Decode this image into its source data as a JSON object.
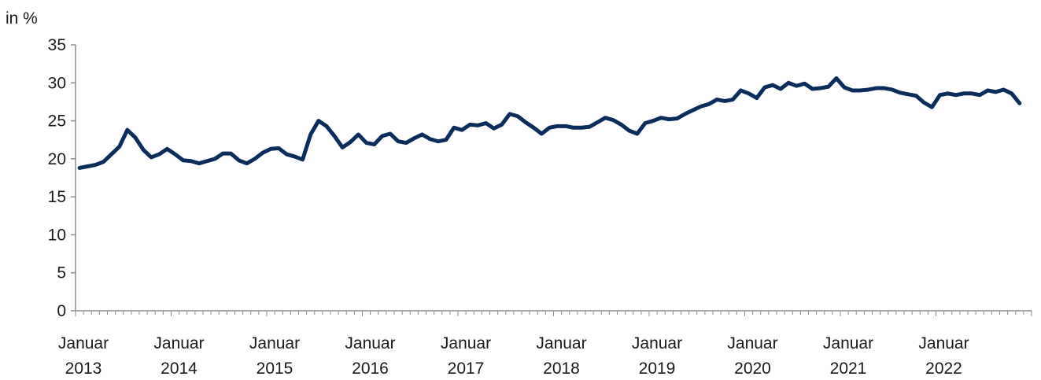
{
  "chart_data": {
    "type": "line",
    "ylabel": "in %",
    "ylim": [
      0,
      35
    ],
    "yticks": [
      0,
      5,
      10,
      15,
      20,
      25,
      30,
      35
    ],
    "grid": false,
    "line_color": "#0b2d5c",
    "axis_color": "#8c8c8c",
    "x_start": "2013-01",
    "x_end": "2022-12",
    "xtick_labels": [
      {
        "date": "2013-01",
        "line1": "Januar",
        "line2": "2013"
      },
      {
        "date": "2014-01",
        "line1": "Januar",
        "line2": "2014"
      },
      {
        "date": "2015-01",
        "line1": "Januar",
        "line2": "2015"
      },
      {
        "date": "2016-01",
        "line1": "Januar",
        "line2": "2016"
      },
      {
        "date": "2017-01",
        "line1": "Januar",
        "line2": "2017"
      },
      {
        "date": "2018-01",
        "line1": "Januar",
        "line2": "2018"
      },
      {
        "date": "2019-01",
        "line1": "Januar",
        "line2": "2019"
      },
      {
        "date": "2020-01",
        "line1": "Januar",
        "line2": "2020"
      },
      {
        "date": "2021-01",
        "line1": "Januar",
        "line2": "2021"
      },
      {
        "date": "2022-01",
        "line1": "Januar",
        "line2": "2022"
      }
    ],
    "series": [
      {
        "values": [
          18.8,
          19.0,
          19.2,
          19.6,
          20.6,
          21.6,
          23.8,
          22.8,
          21.2,
          20.2,
          20.6,
          21.3,
          20.6,
          19.8,
          19.7,
          19.4,
          19.7,
          20.0,
          20.7,
          20.7,
          19.8,
          19.4,
          20.0,
          20.8,
          21.3,
          21.4,
          20.6,
          20.3,
          19.9,
          23.2,
          25.0,
          24.3,
          23.0,
          21.5,
          22.2,
          23.2,
          22.1,
          21.9,
          23.0,
          23.3,
          22.3,
          22.1,
          22.7,
          23.2,
          22.6,
          22.3,
          22.5,
          24.1,
          23.8,
          24.5,
          24.4,
          24.7,
          24.0,
          24.5,
          25.9,
          25.6,
          24.8,
          24.1,
          23.3,
          24.1,
          24.3,
          24.3,
          24.1,
          24.1,
          24.2,
          24.8,
          25.4,
          25.1,
          24.5,
          23.7,
          23.3,
          24.7,
          25.0,
          25.4,
          25.2,
          25.3,
          25.9,
          26.4,
          26.9,
          27.2,
          27.8,
          27.6,
          27.8,
          29.0,
          28.6,
          28.0,
          29.4,
          29.7,
          29.2,
          30.0,
          29.6,
          29.9,
          29.2,
          29.3,
          29.5,
          30.6,
          29.4,
          29.0,
          29.0,
          29.1,
          29.3,
          29.3,
          29.1,
          28.7,
          28.5,
          28.3,
          27.4,
          26.8,
          28.4,
          28.6,
          28.4,
          28.6,
          28.6,
          28.4,
          29.0,
          28.8,
          29.1,
          28.6,
          27.3
        ]
      }
    ]
  }
}
